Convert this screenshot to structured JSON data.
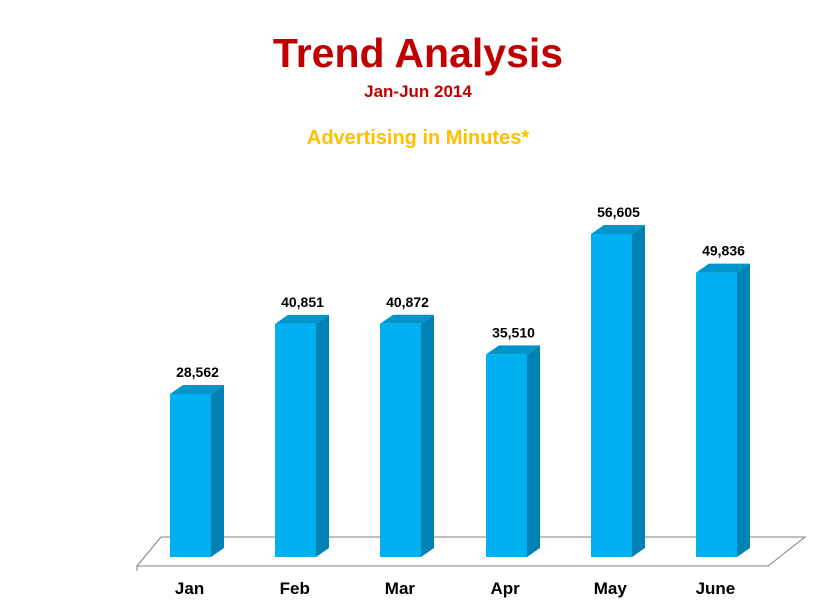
{
  "header": {
    "title": "Trend Analysis",
    "subtitle": "Jan-Jun 2014",
    "chart_heading": "Advertising in Minutes*"
  },
  "colors": {
    "title": "#c00000",
    "chart_heading": "#ffc000",
    "bar_front": "#00b0f0",
    "bar_side": "#0083b4",
    "bar_top": "#0096cc",
    "floor": "#ffffff",
    "axis": "#808080"
  },
  "chart_data": {
    "type": "bar",
    "style": "3d-column",
    "categories": [
      "Jan",
      "Feb",
      "Mar",
      "Apr",
      "May",
      "June"
    ],
    "values": [
      28562,
      40851,
      40872,
      35510,
      56605,
      49836
    ],
    "value_labels": [
      "28,562",
      "40,851",
      "40,872",
      "35,510",
      "56,605",
      "49,836"
    ],
    "title": "Advertising in Minutes*",
    "xlabel": "",
    "ylabel": "",
    "ylim": [
      0,
      60000
    ],
    "grid": false,
    "legend": "none"
  }
}
